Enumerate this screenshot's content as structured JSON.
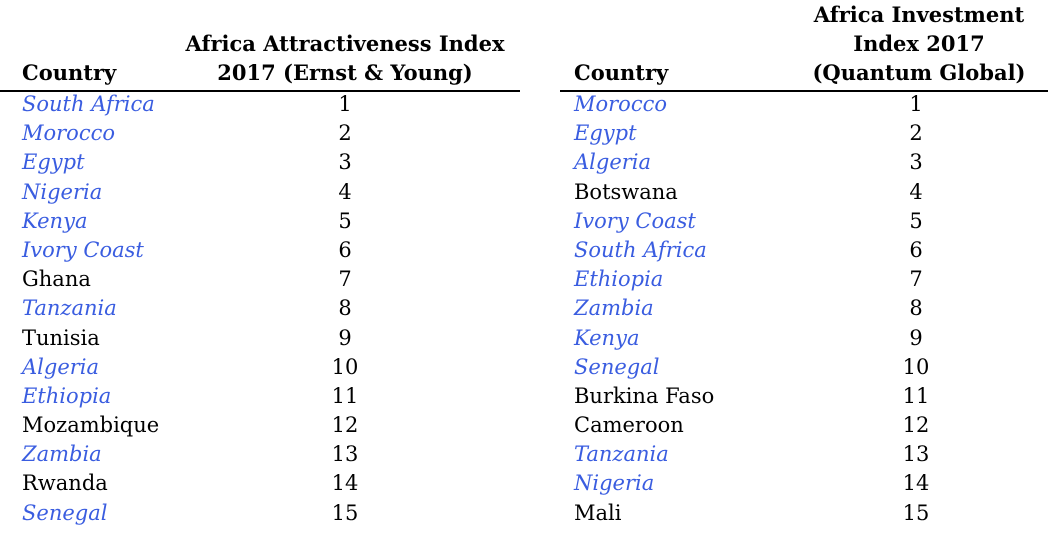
{
  "colors": {
    "highlight": "#3a5de0",
    "text": "#000000",
    "rule": "#000000"
  },
  "left_table": {
    "country_header": "Country",
    "value_header": "Africa Attractiveness Index\n2017 (Ernst & Young)",
    "rows": [
      {
        "country": "South Africa",
        "rank": "1",
        "highlighted": true
      },
      {
        "country": "Morocco",
        "rank": "2",
        "highlighted": true
      },
      {
        "country": "Egypt",
        "rank": "3",
        "highlighted": true
      },
      {
        "country": "Nigeria",
        "rank": "4",
        "highlighted": true
      },
      {
        "country": "Kenya",
        "rank": "5",
        "highlighted": true
      },
      {
        "country": "Ivory Coast",
        "rank": "6",
        "highlighted": true
      },
      {
        "country": "Ghana",
        "rank": "7",
        "highlighted": false
      },
      {
        "country": "Tanzania",
        "rank": "8",
        "highlighted": true
      },
      {
        "country": "Tunisia",
        "rank": "9",
        "highlighted": false
      },
      {
        "country": "Algeria",
        "rank": "10",
        "highlighted": true
      },
      {
        "country": "Ethiopia",
        "rank": "11",
        "highlighted": true
      },
      {
        "country": "Mozambique",
        "rank": "12",
        "highlighted": false
      },
      {
        "country": "Zambia",
        "rank": "13",
        "highlighted": true
      },
      {
        "country": "Rwanda",
        "rank": "14",
        "highlighted": false
      },
      {
        "country": "Senegal",
        "rank": "15",
        "highlighted": true
      }
    ]
  },
  "right_table": {
    "country_header": "Country",
    "value_header": "Africa Investment\nIndex 2017\n(Quantum Global)",
    "rows": [
      {
        "country": "Morocco",
        "rank": "1",
        "highlighted": true
      },
      {
        "country": "Egypt",
        "rank": "2",
        "highlighted": true
      },
      {
        "country": "Algeria",
        "rank": "3",
        "highlighted": true
      },
      {
        "country": "Botswana",
        "rank": "4",
        "highlighted": false
      },
      {
        "country": "Ivory Coast",
        "rank": "5",
        "highlighted": true
      },
      {
        "country": "South Africa",
        "rank": "6",
        "highlighted": true
      },
      {
        "country": "Ethiopia",
        "rank": "7",
        "highlighted": true
      },
      {
        "country": "Zambia",
        "rank": "8",
        "highlighted": true
      },
      {
        "country": "Kenya",
        "rank": "9",
        "highlighted": true
      },
      {
        "country": "Senegal",
        "rank": "10",
        "highlighted": true
      },
      {
        "country": "Burkina Faso",
        "rank": "11",
        "highlighted": false
      },
      {
        "country": "Cameroon",
        "rank": "12",
        "highlighted": false
      },
      {
        "country": "Tanzania",
        "rank": "13",
        "highlighted": true
      },
      {
        "country": "Nigeria",
        "rank": "14",
        "highlighted": true
      },
      {
        "country": "Mali",
        "rank": "15",
        "highlighted": false
      }
    ]
  }
}
